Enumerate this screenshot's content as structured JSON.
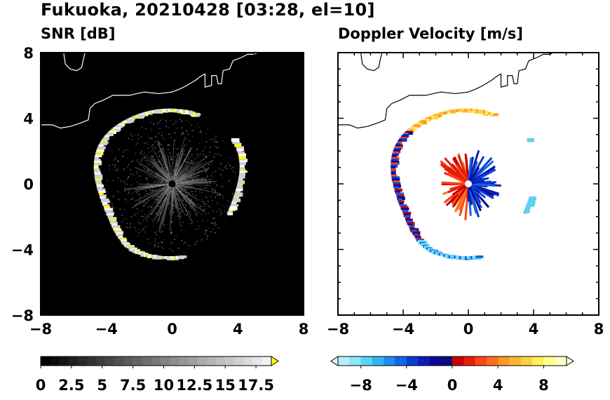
{
  "figure": {
    "title": "Fukuoka, 20210428 [03:28, el=10]"
  },
  "colors": {
    "snr_background": "#000000",
    "coastline": "#ffffff",
    "coastline_on_white": "#000000",
    "echo_high": "#ffff00",
    "echo_gray": "#d0d0d0"
  },
  "chart_data": [
    {
      "type": "heatmap",
      "title": "SNR [dB]",
      "xlim": [
        -8,
        8
      ],
      "ylim": [
        -8,
        8
      ],
      "xticks": [
        "−8",
        "−4",
        "0",
        "4",
        "8"
      ],
      "yticks": [
        "8",
        "4",
        "0",
        "−4",
        "−8"
      ],
      "colorbar": {
        "range": [
          0,
          18.75
        ],
        "extend": "max",
        "tick_labels": [
          "0",
          "2.5",
          "5",
          "7.5",
          "10",
          "12.5",
          "15",
          "17.5"
        ],
        "tick_values": [
          0,
          2.5,
          5,
          7.5,
          10,
          12.5,
          15,
          17.5
        ],
        "colors": [
          "#000000",
          "#0a0a0a",
          "#141414",
          "#1e1e1e",
          "#282828",
          "#323232",
          "#3c3c3c",
          "#464646",
          "#505050",
          "#5a5a5a",
          "#646464",
          "#6e6e6e",
          "#787878",
          "#828282",
          "#8c8c8c",
          "#969696",
          "#a0a0a0",
          "#aaaaaa",
          "#b4b4b4",
          "#bebebe",
          "#c8c8c8",
          "#d2d2d2",
          "#dcdcdc",
          "#e6e6e6",
          "#f0f0f0"
        ],
        "extend_color": "#ffff00"
      },
      "radar_site": [
        0,
        0
      ]
    },
    {
      "type": "heatmap",
      "title": "Doppler Velocity [m/s]",
      "xlim": [
        -8,
        8
      ],
      "ylim": [
        -8,
        8
      ],
      "xticks": [
        "−8",
        "−4",
        "0",
        "4",
        "8"
      ],
      "yticks": [
        "8",
        "4",
        "0",
        "−4",
        "−8"
      ],
      "colorbar": {
        "range": [
          -10,
          10
        ],
        "extend": "both",
        "tick_labels": [
          "−8",
          "−4",
          "0",
          "4",
          "8"
        ],
        "tick_values": [
          -8,
          -4,
          0,
          4,
          8
        ],
        "colors": [
          "#b4f0fa",
          "#8ce6f5",
          "#5ad2f0",
          "#32b4f0",
          "#1e8cf0",
          "#1464e6",
          "#0a3cd2",
          "#0a1eb4",
          "#0a0a96",
          "#0a0a78",
          "#c80000",
          "#e61e0a",
          "#ff4614",
          "#ff6e1e",
          "#ff9628",
          "#ffb432",
          "#ffd23c",
          "#fff05a",
          "#ffff8c",
          "#ffffc8"
        ],
        "extend_low": "#d2fafa",
        "extend_high": "#ffffe6"
      },
      "radar_site": [
        0,
        0
      ]
    }
  ]
}
